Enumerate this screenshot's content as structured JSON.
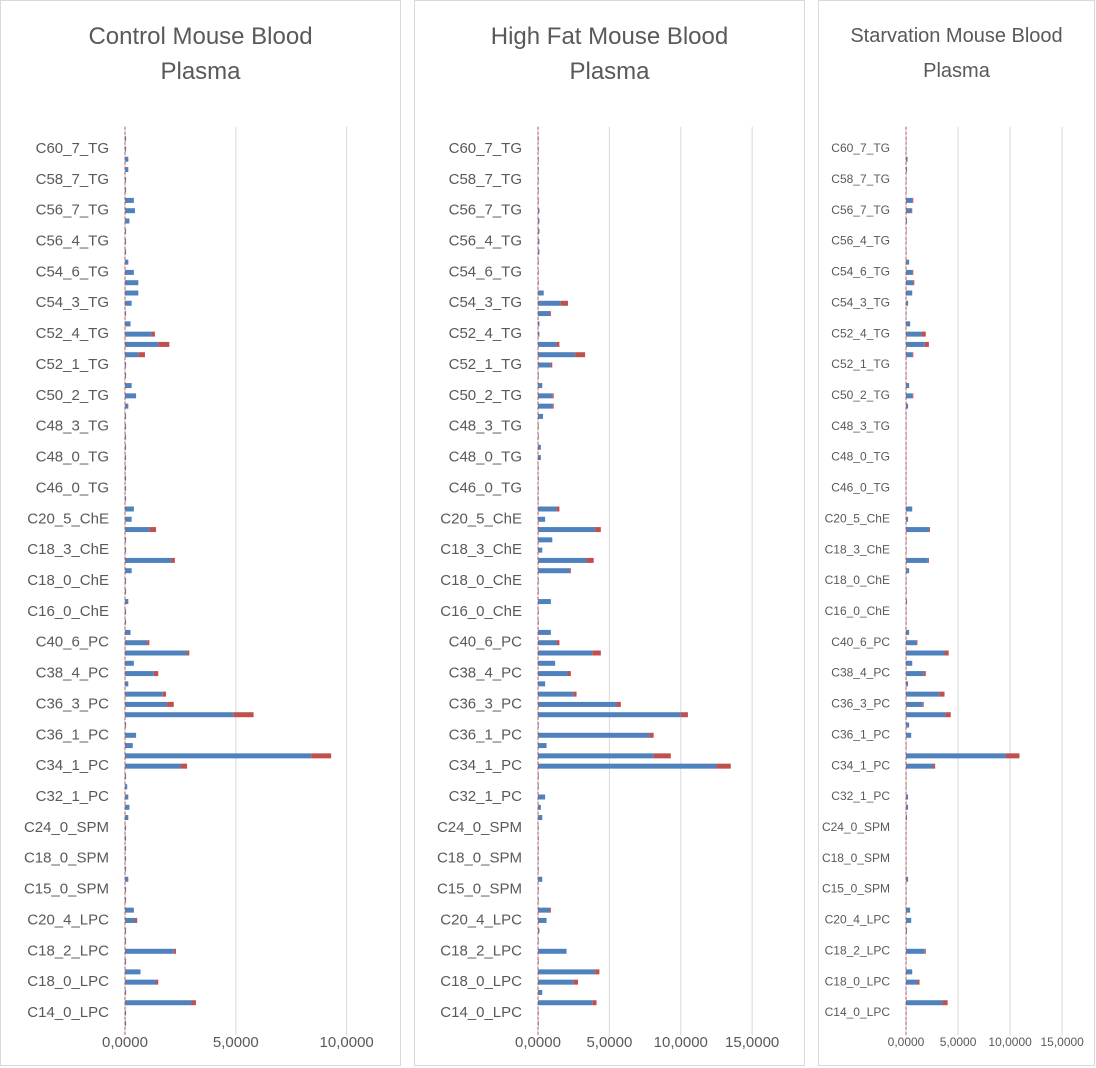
{
  "chart_data": [
    {
      "type": "bar",
      "orientation": "horizontal",
      "title": "Control Mouse Blood Plasma",
      "categories": [
        null,
        "C60_7_TG",
        null,
        null,
        "C58_7_TG",
        null,
        null,
        "C56_7_TG",
        null,
        null,
        "C56_4_TG",
        null,
        null,
        "C54_6_TG",
        null,
        null,
        "C54_3_TG",
        null,
        null,
        "C52_4_TG",
        null,
        null,
        "C52_1_TG",
        null,
        null,
        "C50_2_TG",
        null,
        null,
        "C48_3_TG",
        null,
        null,
        "C48_0_TG",
        null,
        null,
        "C46_0_TG",
        null,
        null,
        "C20_5_ChE",
        null,
        null,
        "C18_3_ChE",
        null,
        null,
        "C18_0_ChE",
        null,
        null,
        "C16_0_ChE",
        null,
        null,
        "C40_6_PC",
        null,
        null,
        "C38_4_PC",
        null,
        null,
        "C36_3_PC",
        null,
        null,
        "C36_1_PC",
        null,
        null,
        "C34_1_PC",
        null,
        null,
        "C32_1_PC",
        null,
        null,
        "C24_0_SPM",
        null,
        null,
        "C18_0_SPM",
        null,
        null,
        "C15_0_SPM",
        null,
        null,
        "C20_4_LPC",
        null,
        null,
        "C18_2_LPC",
        null,
        null,
        "C18_0_LPC",
        null,
        null,
        "C14_0_LPC",
        null
      ],
      "series": [
        {
          "color": "#4f81bd",
          "values": [
            0.05,
            0.05,
            0.15,
            0.15,
            0.05,
            0.05,
            0.4,
            0.45,
            0.2,
            0.05,
            0.05,
            0.05,
            0.15,
            0.4,
            0.6,
            0.6,
            0.3,
            0.05,
            0.25,
            1.2,
            1.5,
            0.6,
            0.05,
            0.05,
            0.3,
            0.5,
            0.15,
            0.05,
            0.05,
            0.05,
            0.05,
            0.05,
            0.05,
            0.05,
            0.05,
            0.05,
            0.4,
            0.3,
            1.1,
            0.05,
            0.05,
            2.1,
            0.3,
            0.05,
            0.05,
            0.15,
            0.05,
            0.05,
            0.25,
            1.0,
            2.8,
            0.4,
            1.3,
            0.15,
            1.7,
            1.9,
            4.9,
            0.05,
            0.5,
            0.35,
            8.4,
            2.5,
            0.05,
            0.1,
            0.15,
            0.2,
            0.15,
            0.05,
            0.05,
            0.05,
            0.05,
            0.05,
            0.15,
            0.05,
            0.05,
            0.4,
            0.45,
            0.05,
            0.05,
            2.2,
            0.05,
            0.7,
            1.4,
            0.05,
            3.0,
            0.05,
            0.05
          ]
        },
        {
          "color": "#c0504d",
          "values": [
            0,
            0,
            0,
            0,
            0,
            0,
            0,
            0,
            0,
            0,
            0,
            0,
            0,
            0,
            0,
            0,
            0,
            0,
            0,
            0.15,
            0.5,
            0.3,
            0,
            0,
            0,
            0,
            0,
            0,
            0,
            0,
            0,
            0,
            0,
            0,
            0,
            0,
            0,
            0,
            0.3,
            0,
            0,
            0.15,
            0,
            0,
            0,
            0,
            0,
            0,
            0,
            0.1,
            0.1,
            0,
            0.2,
            0,
            0.15,
            0.3,
            0.9,
            0,
            0,
            0,
            0.9,
            0.3,
            0,
            0,
            0,
            0,
            0,
            0,
            0,
            0,
            0,
            0,
            0,
            0,
            0,
            0,
            0.1,
            0,
            0,
            0.1,
            0,
            0,
            0.1,
            0,
            0.2,
            0,
            0
          ]
        }
      ],
      "xlim": [
        0,
        12
      ],
      "xticks": [
        {
          "value": 0,
          "label": "0,0000"
        },
        {
          "value": 5,
          "label": "5,0000"
        },
        {
          "value": 10,
          "label": "10,0000"
        }
      ],
      "grid": true
    },
    {
      "type": "bar",
      "orientation": "horizontal",
      "title": "High Fat Mouse Blood Plasma",
      "categories": [
        null,
        "C60_7_TG",
        null,
        null,
        "C58_7_TG",
        null,
        null,
        "C56_7_TG",
        null,
        null,
        "C56_4_TG",
        null,
        null,
        "C54_6_TG",
        null,
        null,
        "C54_3_TG",
        null,
        null,
        "C52_4_TG",
        null,
        null,
        "C52_1_TG",
        null,
        null,
        "C50_2_TG",
        null,
        null,
        "C48_3_TG",
        null,
        null,
        "C48_0_TG",
        null,
        null,
        "C46_0_TG",
        null,
        null,
        "C20_5_ChE",
        null,
        null,
        "C18_3_ChE",
        null,
        null,
        "C18_0_ChE",
        null,
        null,
        "C16_0_ChE",
        null,
        null,
        "C40_6_PC",
        null,
        null,
        "C38_4_PC",
        null,
        null,
        "C36_3_PC",
        null,
        null,
        "C36_1_PC",
        null,
        null,
        "C34_1_PC",
        null,
        null,
        "C32_1_PC",
        null,
        null,
        "C24_0_SPM",
        null,
        null,
        "C18_0_SPM",
        null,
        null,
        "C15_0_SPM",
        null,
        null,
        "C20_4_LPC",
        null,
        null,
        "C18_2_LPC",
        null,
        null,
        "C18_0_LPC",
        null,
        null,
        "C14_0_LPC",
        null
      ],
      "series": [
        {
          "color": "#4f81bd",
          "values": [
            0.05,
            0.05,
            0.05,
            0.05,
            0.05,
            0.05,
            0.05,
            0.1,
            0.1,
            0.1,
            0.1,
            0.1,
            0.05,
            0.05,
            0.05,
            0.4,
            1.6,
            0.8,
            0.1,
            0.1,
            1.3,
            2.6,
            0.9,
            0.05,
            0.3,
            1.0,
            1.0,
            0.35,
            0.05,
            0.05,
            0.2,
            0.2,
            0.05,
            0.05,
            0.05,
            0.05,
            1.3,
            0.5,
            4.0,
            1.0,
            0.3,
            3.4,
            2.2,
            0.05,
            0.05,
            0.9,
            0.05,
            0.05,
            0.9,
            1.3,
            3.8,
            1.2,
            2.1,
            0.5,
            2.5,
            5.5,
            10.0,
            0.05,
            7.8,
            0.6,
            8.1,
            12.5,
            0.05,
            0.05,
            0.5,
            0.2,
            0.3,
            0.05,
            0.05,
            0.05,
            0.05,
            0.05,
            0.3,
            0.05,
            0.05,
            0.8,
            0.6,
            0.1,
            0.05,
            2.0,
            0.05,
            4.0,
            2.5,
            0.3,
            3.8,
            0.05,
            0.05
          ]
        },
        {
          "color": "#c0504d",
          "values": [
            0,
            0,
            0,
            0,
            0,
            0,
            0,
            0,
            0,
            0,
            0,
            0,
            0,
            0,
            0,
            0,
            0.5,
            0.1,
            0,
            0,
            0.2,
            0.7,
            0.1,
            0,
            0,
            0.1,
            0.1,
            0,
            0,
            0,
            0,
            0,
            0,
            0,
            0,
            0,
            0.2,
            0,
            0.4,
            0,
            0,
            0.5,
            0.1,
            0,
            0,
            0,
            0,
            0,
            0,
            0.2,
            0.6,
            0,
            0.2,
            0,
            0.2,
            0.3,
            0.5,
            0,
            0.3,
            0,
            1.2,
            1.0,
            0,
            0,
            0,
            0,
            0,
            0,
            0,
            0,
            0,
            0,
            0,
            0,
            0,
            0.1,
            0,
            0,
            0,
            0,
            0,
            0.3,
            0.3,
            0,
            0.3,
            0,
            0
          ]
        }
      ],
      "xlim": [
        0,
        18
      ],
      "xticks": [
        {
          "value": 0,
          "label": "0,0000"
        },
        {
          "value": 5,
          "label": "5,0000"
        },
        {
          "value": 10,
          "label": "10,0000"
        },
        {
          "value": 15,
          "label": "15,0000"
        }
      ],
      "grid": true
    },
    {
      "type": "bar",
      "orientation": "horizontal",
      "title": "Starvation Mouse Blood Plasma",
      "categories": [
        null,
        "C60_7_TG",
        null,
        null,
        "C58_7_TG",
        null,
        null,
        "C56_7_TG",
        null,
        null,
        "C56_4_TG",
        null,
        null,
        "C54_6_TG",
        null,
        null,
        "C54_3_TG",
        null,
        null,
        "C52_4_TG",
        null,
        null,
        "C52_1_TG",
        null,
        null,
        "C50_2_TG",
        null,
        null,
        "C48_3_TG",
        null,
        null,
        "C48_0_TG",
        null,
        null,
        "C46_0_TG",
        null,
        null,
        "C20_5_ChE",
        null,
        null,
        "C18_3_ChE",
        null,
        null,
        "C18_0_ChE",
        null,
        null,
        "C16_0_ChE",
        null,
        null,
        "C40_6_PC",
        null,
        null,
        "C38_4_PC",
        null,
        null,
        "C36_3_PC",
        null,
        null,
        "C36_1_PC",
        null,
        null,
        "C34_1_PC",
        null,
        null,
        "C32_1_PC",
        null,
        null,
        "C24_0_SPM",
        null,
        null,
        "C18_0_SPM",
        null,
        null,
        "C15_0_SPM",
        null,
        null,
        "C20_4_LPC",
        null,
        null,
        "C18_2_LPC",
        null,
        null,
        "C18_0_LPC",
        null,
        null,
        "C14_0_LPC",
        null
      ],
      "series": [
        {
          "color": "#4f81bd",
          "values": [
            0.05,
            0.05,
            0.15,
            0.1,
            0.05,
            0.05,
            0.6,
            0.5,
            0.1,
            0.05,
            0.05,
            0.05,
            0.3,
            0.6,
            0.7,
            0.6,
            0.2,
            0.05,
            0.4,
            1.5,
            1.8,
            0.6,
            0.05,
            0.05,
            0.3,
            0.6,
            0.2,
            0.05,
            0.05,
            0.05,
            0.05,
            0.05,
            0.05,
            0.05,
            0.05,
            0.05,
            0.6,
            0.2,
            2.2,
            0.05,
            0.05,
            2.1,
            0.3,
            0.05,
            0.05,
            0.1,
            0.05,
            0.05,
            0.3,
            1.0,
            3.7,
            0.6,
            1.7,
            0.2,
            3.2,
            1.6,
            3.8,
            0.3,
            0.5,
            0.05,
            9.6,
            2.6,
            0.05,
            0.05,
            0.2,
            0.2,
            0.1,
            0.05,
            0.05,
            0.05,
            0.05,
            0.05,
            0.2,
            0.05,
            0.05,
            0.4,
            0.5,
            0.1,
            0.05,
            1.8,
            0.05,
            0.6,
            1.1,
            0.05,
            3.5,
            0.05,
            0.05
          ]
        },
        {
          "color": "#c0504d",
          "values": [
            0,
            0,
            0,
            0,
            0,
            0,
            0.1,
            0.1,
            0,
            0,
            0,
            0,
            0,
            0.1,
            0.1,
            0,
            0,
            0,
            0,
            0.4,
            0.4,
            0.1,
            0,
            0,
            0,
            0.1,
            0,
            0,
            0,
            0,
            0,
            0,
            0,
            0,
            0,
            0,
            0,
            0,
            0.1,
            0,
            0,
            0.1,
            0,
            0,
            0,
            0,
            0,
            0,
            0,
            0.1,
            0.4,
            0,
            0.2,
            0,
            0.5,
            0.1,
            0.5,
            0,
            0,
            0,
            1.3,
            0.2,
            0,
            0,
            0,
            0,
            0,
            0,
            0,
            0,
            0,
            0,
            0,
            0,
            0,
            0,
            0,
            0,
            0,
            0.1,
            0,
            0,
            0.2,
            0,
            0.5,
            0,
            0
          ]
        }
      ],
      "xlim": [
        0,
        17
      ],
      "xticks": [
        {
          "value": 0,
          "label": "0,0000"
        },
        {
          "value": 5,
          "label": "5,0000"
        },
        {
          "value": 10,
          "label": "10,0000"
        },
        {
          "value": 15,
          "label": "15,0000"
        }
      ],
      "grid": true
    }
  ]
}
